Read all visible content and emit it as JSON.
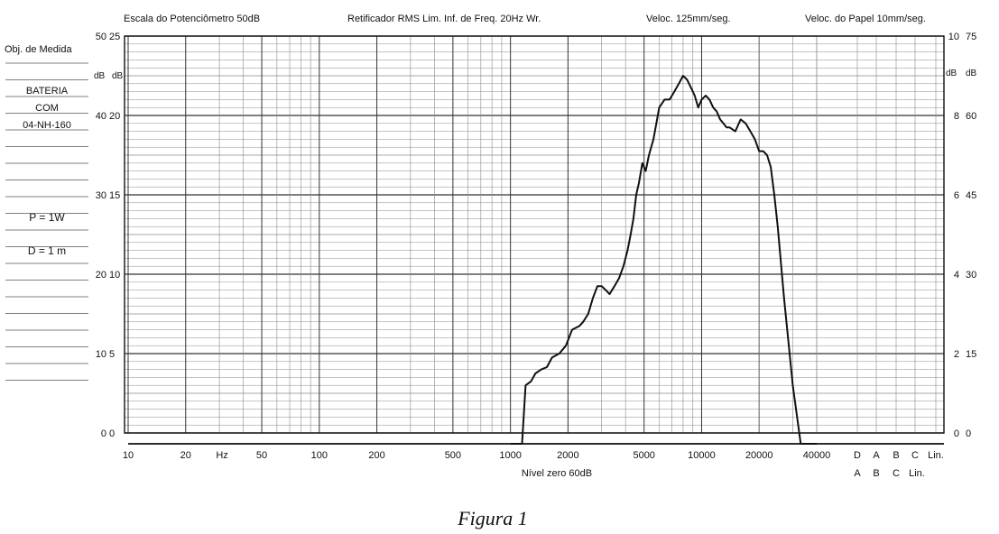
{
  "header": {
    "scale": "Escala do Potenciômetro 50dB",
    "rectifier": "Retificador RMS Lim. Inf. de Freq. 20Hz Wr.",
    "speed": "Veloc. 125mm/seg.",
    "paper": "Veloc. do Papel 10mm/seg."
  },
  "left_panel": {
    "title": "Obj. de Medida",
    "device": [
      "BATERIA",
      "COM",
      "04-NH-160"
    ],
    "power": "P = 1W",
    "distance": "D = 1 m"
  },
  "db_unit": "dB",
  "left_ticks_outer": [
    "50",
    "40",
    "30",
    "20",
    "10",
    "0"
  ],
  "left_ticks_inner": [
    "25",
    "20",
    "15",
    "10",
    "5",
    "0"
  ],
  "right_ticks_inner": [
    "10",
    "8",
    "6",
    "4",
    "2",
    "0"
  ],
  "right_ticks_outer": [
    "75",
    "60",
    "45",
    "30",
    "15",
    "0"
  ],
  "x_tick_labels": [
    "10",
    "20",
    "Hz",
    "50",
    "100",
    "200",
    "500",
    "1000",
    "2000",
    "5000",
    "10000",
    "20000",
    "40000"
  ],
  "weighting_labels_top": [
    "D",
    "A",
    "B",
    "C",
    "Lin."
  ],
  "weighting_labels_bottom": [
    "A",
    "B",
    "C",
    "Lin."
  ],
  "zero_level": "Nível zero 60dB",
  "caption": "Figura 1",
  "colors": {
    "ink": "#111111",
    "grid": "#777777",
    "paper": "#ffffff"
  },
  "chart_data": {
    "type": "line",
    "xscale": "log",
    "xlim": [
      10,
      40000
    ],
    "ylim": [
      0,
      50
    ],
    "ylabel": "dB",
    "grid": true,
    "x": [
      1000,
      1150,
      1200,
      1280,
      1350,
      1450,
      1550,
      1650,
      1800,
      1950,
      2100,
      2300,
      2400,
      2550,
      2700,
      2850,
      3000,
      3150,
      3300,
      3500,
      3700,
      3900,
      4100,
      4250,
      4400,
      4550,
      4700,
      4900,
      5100,
      5300,
      5600,
      6000,
      6400,
      6800,
      7200,
      7600,
      8000,
      8400,
      8800,
      9200,
      9600,
      10000,
      10500,
      11000,
      11500,
      12000,
      12500,
      13000,
      13500,
      14000,
      15000,
      16000,
      17000,
      18000,
      19000,
      20000,
      21000,
      22000,
      23000,
      24000,
      25000,
      27000,
      30000,
      33000,
      36000,
      38000,
      40000
    ],
    "y": [
      0,
      0,
      6,
      6.5,
      7.5,
      8,
      8.3,
      9.5,
      10,
      11,
      13,
      13.5,
      14,
      15,
      17,
      18.5,
      18.5,
      18,
      17.5,
      18.5,
      19.5,
      21,
      23,
      25,
      27,
      30,
      31.5,
      34,
      33,
      35,
      37,
      41,
      42,
      42,
      43,
      44,
      45,
      44.5,
      43.5,
      42.5,
      41,
      42,
      42.5,
      42,
      41,
      40.5,
      39.5,
      39,
      38.5,
      38.5,
      38,
      39.5,
      39,
      38,
      37,
      35.5,
      35.5,
      35,
      33.5,
      30,
      26,
      17,
      6,
      0,
      0,
      0,
      0
    ]
  }
}
